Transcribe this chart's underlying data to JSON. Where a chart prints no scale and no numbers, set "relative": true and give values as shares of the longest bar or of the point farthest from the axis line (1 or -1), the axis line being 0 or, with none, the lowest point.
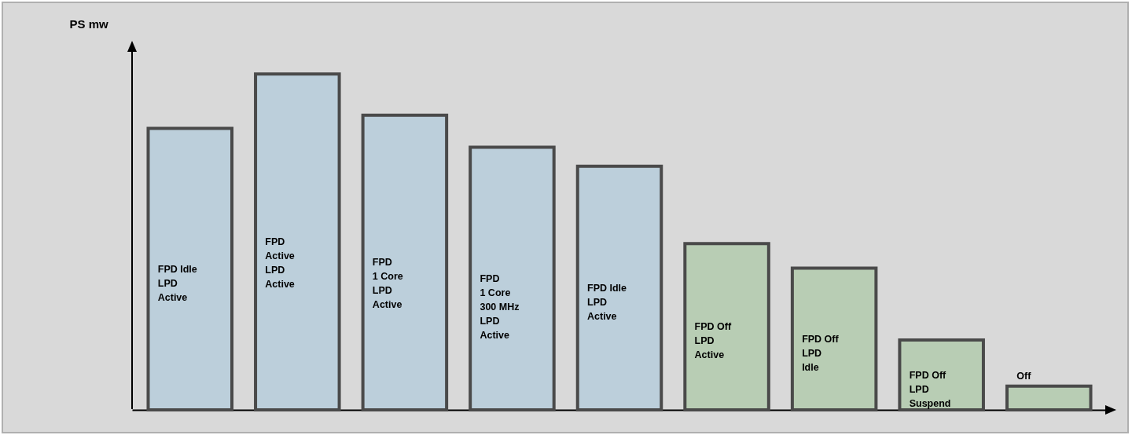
{
  "chart_data": {
    "type": "bar",
    "relative": true,
    "ylabel": "PS mw",
    "categories": [
      "FPD Idle\nLPD\nActive",
      "FPD\nActive\nLPD\nActive",
      "FPD\n1 Core\nLPD\nActive",
      "FPD\n1 Core\n300 MHz\nLPD\nActive",
      "FPD Idle\nLPD\nActive",
      "FPD Off\nLPD\nActive",
      "FPD Off\nLPD\nIdle",
      "FPD Off\nLPD\nSuspend",
      "Off"
    ],
    "values": [
      0.838,
      1,
      0.877,
      0.782,
      0.725,
      0.495,
      0.422,
      0.208,
      0.071
    ],
    "colors": [
      "#bccfdb",
      "#bccfdb",
      "#bccfdb",
      "#bccfdb",
      "#bccfdb",
      "#b8cdb4",
      "#b8cdb4",
      "#b8cdb4",
      "#b8cdb4"
    ]
  }
}
